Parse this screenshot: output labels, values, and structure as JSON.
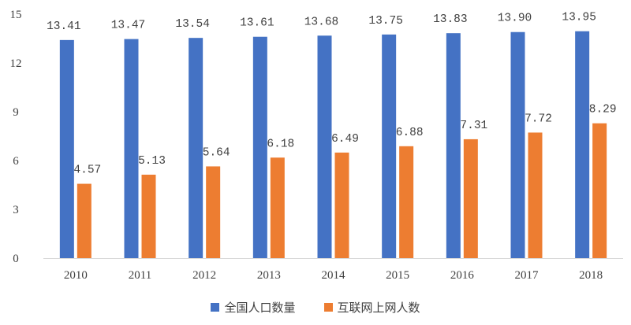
{
  "chart_data": {
    "type": "bar",
    "categories": [
      "2010",
      "2011",
      "2012",
      "2013",
      "2014",
      "2015",
      "2016",
      "2017",
      "2018"
    ],
    "series": [
      {
        "name": "全国人口数量",
        "color": "#4472C4",
        "values": [
          13.41,
          13.47,
          13.54,
          13.61,
          13.68,
          13.75,
          13.83,
          13.9,
          13.95
        ],
        "labels": [
          "13.41",
          "13.47",
          "13.54",
          "13.61",
          "13.68",
          "13.75",
          "13.83",
          "13.90",
          "13.95"
        ]
      },
      {
        "name": "互联网上网人数",
        "color": "#ED7D31",
        "values": [
          4.57,
          5.13,
          5.64,
          6.18,
          6.49,
          6.88,
          7.31,
          7.72,
          8.29
        ],
        "labels": [
          "4.57",
          "5.13",
          "5.64",
          "6.18",
          "6.49",
          "6.88",
          "7.31",
          "7.72",
          "8.29"
        ]
      }
    ],
    "ylim": [
      0,
      15
    ],
    "yticks": [
      "0",
      "3",
      "6",
      "9",
      "12",
      "15"
    ],
    "grid": false,
    "legend": "bottom"
  }
}
